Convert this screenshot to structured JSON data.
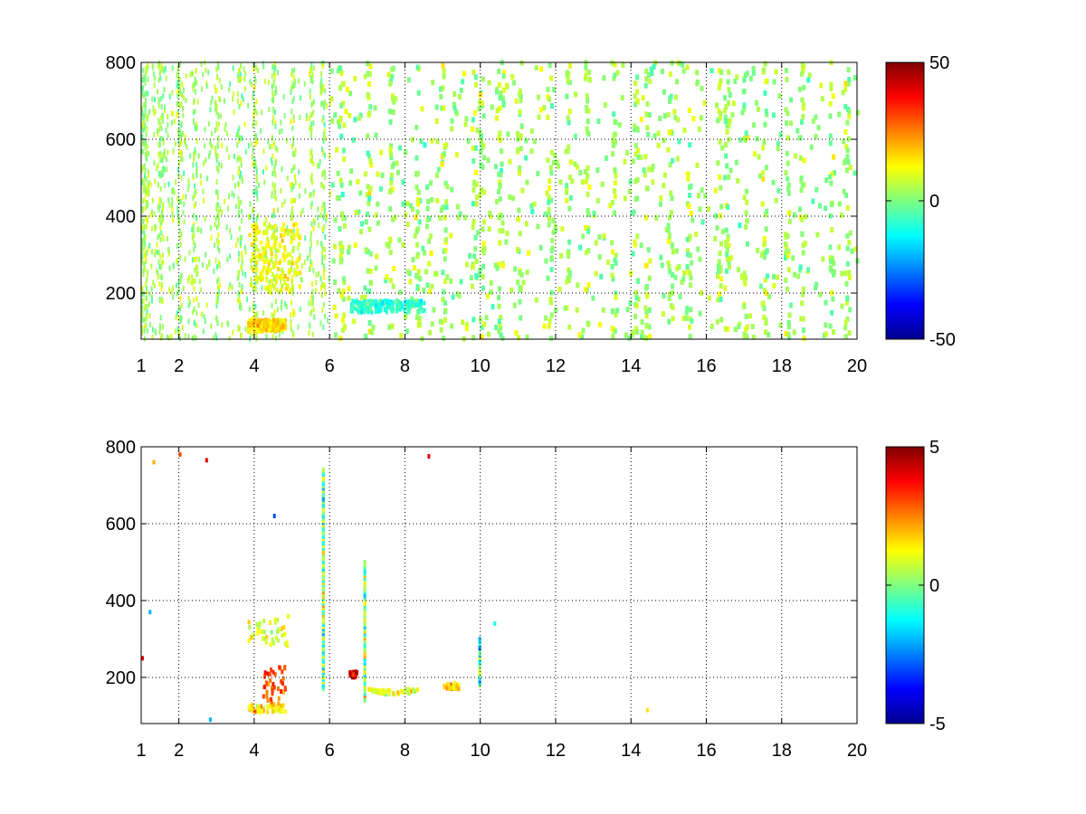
{
  "chart_data": [
    {
      "type": "heatmap",
      "x_ticks": [
        "1",
        "2",
        "4",
        "6",
        "8",
        "10",
        "12",
        "14",
        "16",
        "18",
        "20"
      ],
      "x_tick_values": [
        1,
        2,
        4,
        6,
        8,
        10,
        12,
        14,
        16,
        18,
        20
      ],
      "y_ticks": [
        "200",
        "400",
        "600",
        "800"
      ],
      "y_tick_values": [
        200,
        400,
        600,
        800
      ],
      "xlim": [
        1,
        20
      ],
      "ylim": [
        80,
        800
      ],
      "grid": true,
      "colormap": "jet",
      "color_range": [
        -50,
        50
      ],
      "colorbar_ticks": [
        "50",
        "0",
        "-50"
      ],
      "colorbar_tick_values": [
        50,
        0,
        -50
      ],
      "density": "dense",
      "vertical_bands_x": [
        1.1,
        1.5,
        2.0,
        2.4,
        3.0,
        3.6,
        4.0,
        4.5,
        5.0,
        5.5,
        5.8,
        6.3,
        7.0,
        7.6,
        8.3,
        9.0,
        9.8,
        10.0,
        10.5,
        11.0,
        11.8,
        12.3,
        12.8,
        13.5,
        14.1,
        14.4,
        15.0,
        15.5,
        16.3,
        16.5,
        17.0,
        17.5,
        18.1,
        18.5,
        19.3,
        19.7
      ],
      "features": [
        {
          "x": [
            3.8,
            5.2
          ],
          "y": [
            200,
            380
          ],
          "value": 12
        },
        {
          "x": [
            3.8,
            4.8
          ],
          "y": [
            100,
            130
          ],
          "value": 16
        },
        {
          "x": [
            6.5,
            8.5
          ],
          "y": [
            150,
            180
          ],
          "value": -8
        }
      ]
    },
    {
      "type": "heatmap",
      "x_ticks": [
        "1",
        "2",
        "4",
        "6",
        "8",
        "10",
        "12",
        "14",
        "16",
        "18",
        "20"
      ],
      "x_tick_values": [
        1,
        2,
        4,
        6,
        8,
        10,
        12,
        14,
        16,
        18,
        20
      ],
      "y_ticks": [
        "200",
        "400",
        "600",
        "800"
      ],
      "y_tick_values": [
        200,
        400,
        600,
        800
      ],
      "xlim": [
        1,
        20
      ],
      "ylim": [
        80,
        800
      ],
      "grid": true,
      "colormap": "jet",
      "color_range": [
        -5,
        5
      ],
      "colorbar_ticks": [
        "5",
        "0",
        "-5"
      ],
      "colorbar_tick_values": [
        5,
        0,
        -5
      ],
      "density": "sparse",
      "vertical_lines": [
        {
          "x": 5.8,
          "y": [
            170,
            740
          ]
        },
        {
          "x": 6.9,
          "y": [
            140,
            500
          ]
        },
        {
          "x": 9.95,
          "y": [
            180,
            300
          ]
        }
      ],
      "clusters": [
        {
          "x": [
            3.8,
            4.8
          ],
          "y": [
            110,
            130
          ],
          "value": 1.5
        },
        {
          "x": [
            3.8,
            4.9
          ],
          "y": [
            280,
            360
          ],
          "value": 1
        },
        {
          "x": [
            4.2,
            4.8
          ],
          "y": [
            130,
            230
          ],
          "value": 3
        },
        {
          "x": [
            7.0,
            8.3
          ],
          "y": [
            155,
            170
          ],
          "value": 1
        },
        {
          "x": [
            9.0,
            9.4
          ],
          "y": [
            170,
            185
          ],
          "value": 1.5
        },
        {
          "x": [
            6.5,
            6.7
          ],
          "y": [
            200,
            215
          ],
          "value": 4
        }
      ],
      "scatter_points": [
        {
          "x": 8.6,
          "y": 775,
          "value": 4
        },
        {
          "x": 1.3,
          "y": 760,
          "value": 2
        },
        {
          "x": 2.7,
          "y": 765,
          "value": 4
        },
        {
          "x": 2.0,
          "y": 780,
          "value": 3
        },
        {
          "x": 4.5,
          "y": 620,
          "value": -3
        },
        {
          "x": 1.0,
          "y": 250,
          "value": 4
        },
        {
          "x": 1.2,
          "y": 370,
          "value": -2
        },
        {
          "x": 10.35,
          "y": 340,
          "value": -1
        },
        {
          "x": 14.4,
          "y": 115,
          "value": 1.5
        },
        {
          "x": 2.8,
          "y": 90,
          "value": -2
        }
      ]
    }
  ]
}
